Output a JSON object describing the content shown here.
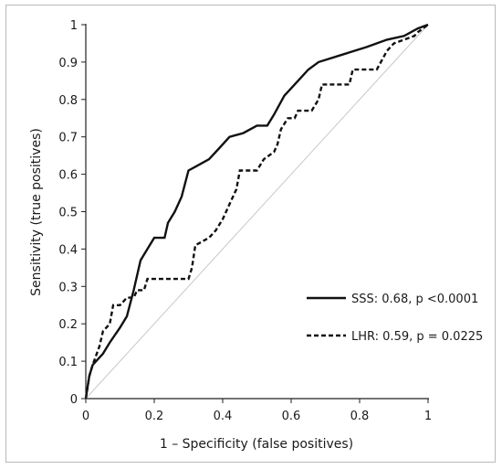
{
  "chart_data": {
    "type": "line",
    "title": "",
    "xlabel": "1 – Specificity (false positives)",
    "ylabel": "Sensitivity (true positives)",
    "xlim": [
      0,
      1
    ],
    "ylim": [
      0,
      1
    ],
    "x_ticks": [
      "0",
      "0.2",
      "0.4",
      "0.6",
      "0.8",
      "1"
    ],
    "x_tick_values": [
      0,
      0.2,
      0.4,
      0.6,
      0.8,
      1
    ],
    "y_ticks": [
      "0",
      "0.1",
      "0.2",
      "0.3",
      "0.4",
      "0.5",
      "0.6",
      "0.7",
      "0.8",
      "0.9",
      "1"
    ],
    "y_tick_values": [
      0,
      0.1,
      0.2,
      0.3,
      0.4,
      0.5,
      0.6,
      0.7,
      0.8,
      0.9,
      1
    ],
    "grid": false,
    "legend_position": "bottom-right",
    "reference_line": {
      "x": [
        0,
        1
      ],
      "y": [
        0,
        1
      ],
      "color": "#c8c8c8"
    },
    "series": [
      {
        "name": "SSS: 0.68, p <0.0001",
        "style": "solid",
        "color": "#111111",
        "x": [
          0,
          0.01,
          0.02,
          0.05,
          0.07,
          0.1,
          0.12,
          0.14,
          0.16,
          0.18,
          0.2,
          0.23,
          0.24,
          0.26,
          0.28,
          0.3,
          0.32,
          0.36,
          0.39,
          0.42,
          0.46,
          0.5,
          0.53,
          0.55,
          0.58,
          0.62,
          0.65,
          0.68,
          0.75,
          0.82,
          0.88,
          0.93,
          0.97,
          1.0
        ],
        "y": [
          0,
          0.06,
          0.09,
          0.12,
          0.15,
          0.19,
          0.22,
          0.29,
          0.37,
          0.4,
          0.43,
          0.43,
          0.47,
          0.5,
          0.54,
          0.61,
          0.62,
          0.64,
          0.67,
          0.7,
          0.71,
          0.73,
          0.73,
          0.76,
          0.81,
          0.85,
          0.88,
          0.9,
          0.92,
          0.94,
          0.96,
          0.97,
          0.99,
          1.0
        ]
      },
      {
        "name": "LHR: 0.59, p = 0.0225",
        "style": "dashed",
        "color": "#111111",
        "x": [
          0,
          0.01,
          0.02,
          0.04,
          0.05,
          0.07,
          0.08,
          0.1,
          0.12,
          0.14,
          0.15,
          0.17,
          0.18,
          0.3,
          0.31,
          0.32,
          0.36,
          0.38,
          0.4,
          0.42,
          0.44,
          0.45,
          0.5,
          0.52,
          0.55,
          0.56,
          0.57,
          0.59,
          0.61,
          0.62,
          0.66,
          0.68,
          0.69,
          0.77,
          0.78,
          0.85,
          0.88,
          0.9,
          0.93,
          0.96,
          0.97,
          1.0
        ],
        "y": [
          0,
          0.06,
          0.09,
          0.14,
          0.18,
          0.2,
          0.25,
          0.25,
          0.27,
          0.27,
          0.29,
          0.29,
          0.32,
          0.32,
          0.35,
          0.41,
          0.43,
          0.45,
          0.48,
          0.52,
          0.56,
          0.61,
          0.61,
          0.64,
          0.66,
          0.68,
          0.72,
          0.75,
          0.75,
          0.77,
          0.77,
          0.8,
          0.84,
          0.84,
          0.88,
          0.88,
          0.93,
          0.95,
          0.96,
          0.97,
          0.98,
          1.0
        ]
      }
    ]
  }
}
